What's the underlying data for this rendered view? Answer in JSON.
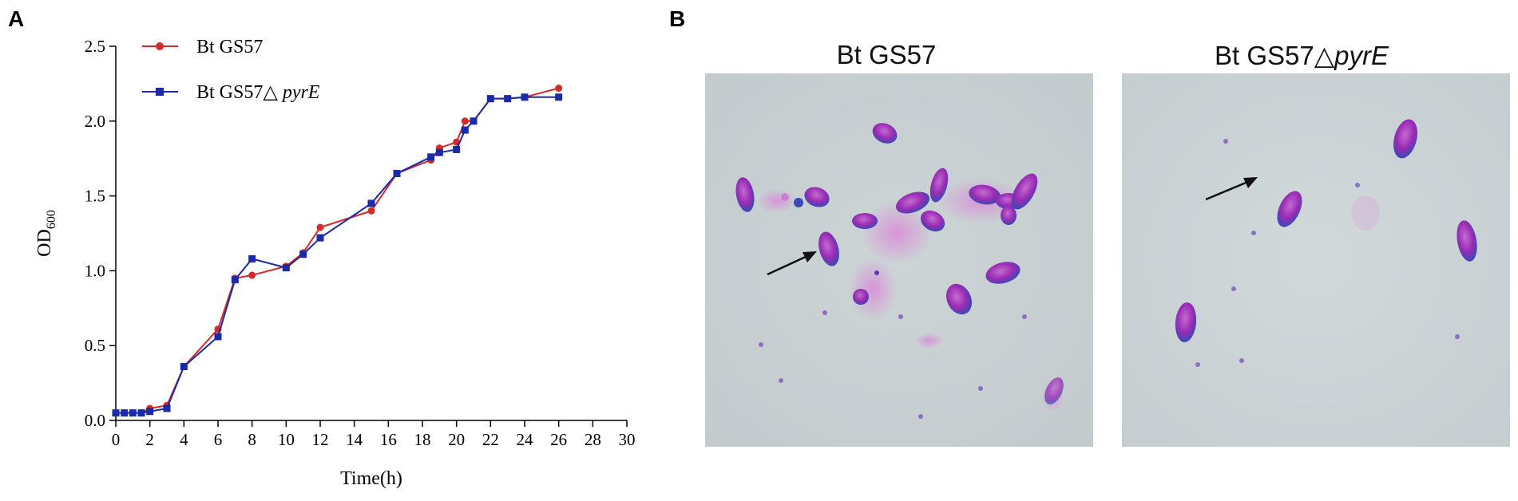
{
  "panels": {
    "a": "A",
    "b": "B"
  },
  "chart_data": {
    "type": "line",
    "xlabel": "Time(h)",
    "ylabel": "OD",
    "ylabel_sub": "600",
    "xlim": [
      0,
      30
    ],
    "ylim": [
      0.0,
      2.5
    ],
    "xticks": [
      "0",
      "2",
      "4",
      "6",
      "8",
      "10",
      "12",
      "14",
      "16",
      "18",
      "20",
      "22",
      "24",
      "26",
      "28",
      "30"
    ],
    "yticks": [
      "0.0",
      "0.5",
      "1.0",
      "1.5",
      "2.0",
      "2.5"
    ],
    "legend_position": "top-left",
    "grid": false,
    "series": [
      {
        "name": "Bt GS57",
        "color": "#d42a2a",
        "marker": "circle",
        "x": [
          0,
          0.5,
          1,
          1.5,
          2,
          3,
          4,
          6,
          7,
          8,
          10,
          11,
          12,
          15,
          16.5,
          18.5,
          19,
          20,
          20.5,
          21,
          22,
          23,
          24,
          26
        ],
        "y": [
          0.05,
          0.05,
          0.05,
          0.05,
          0.08,
          0.1,
          0.36,
          0.61,
          0.95,
          0.97,
          1.03,
          1.12,
          1.29,
          1.4,
          1.65,
          1.74,
          1.82,
          1.86,
          2.0,
          2.0,
          2.15,
          2.15,
          2.16,
          2.22
        ]
      },
      {
        "name": "Bt GS57",
        "name_suffix": "pyrE",
        "color": "#1a2aa8",
        "marker": "square",
        "x": [
          0,
          0.5,
          1,
          1.5,
          2,
          3,
          4,
          6,
          7,
          8,
          10,
          11,
          12,
          15,
          16.5,
          18.5,
          19,
          20,
          20.5,
          21,
          22,
          23,
          24,
          26
        ],
        "y": [
          0.05,
          0.05,
          0.05,
          0.05,
          0.06,
          0.08,
          0.36,
          0.56,
          0.94,
          1.08,
          1.02,
          1.11,
          1.22,
          1.45,
          1.65,
          1.76,
          1.79,
          1.81,
          1.94,
          2.0,
          2.15,
          2.15,
          2.16,
          2.16
        ]
      }
    ]
  },
  "micrographs": [
    {
      "title": "Bt GS57",
      "title_suffix": ""
    },
    {
      "title": "Bt GS57△",
      "title_suffix": "pyrE"
    }
  ]
}
